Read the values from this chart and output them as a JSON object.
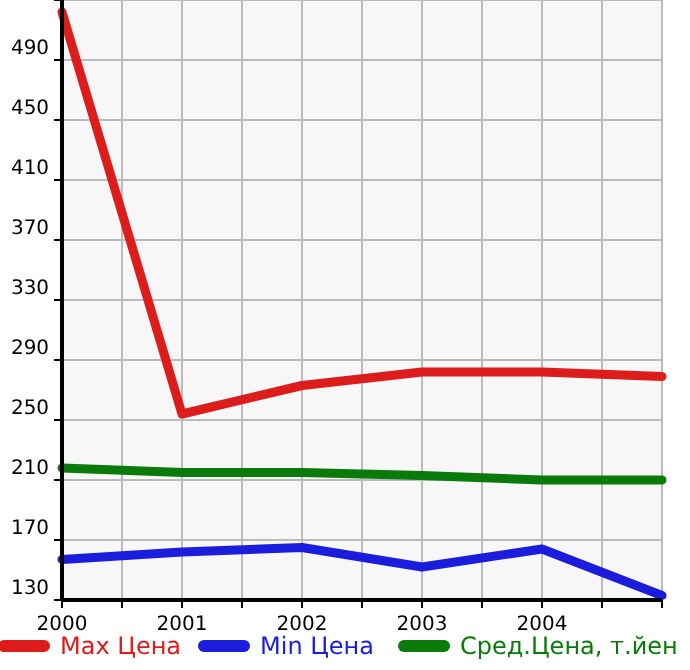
{
  "chart_data": {
    "type": "line",
    "x": [
      2000,
      2001,
      2002,
      2003,
      2004,
      2005
    ],
    "series": [
      {
        "name": "Max Цена",
        "color": "#dd1c1c",
        "values": [
          522,
          254,
          273,
          282,
          282,
          279
        ]
      },
      {
        "name": "Min Цена",
        "color": "#1c1cdd",
        "values": [
          157,
          162,
          165,
          152,
          164,
          133
        ]
      },
      {
        "name": "Сред.Цена, т.йен",
        "color": "#0a7a0a",
        "values": [
          218,
          215,
          215,
          213,
          210,
          210
        ]
      }
    ],
    "xlim": [
      2000,
      2005
    ],
    "xticks": [
      2000,
      {
        "value": 2000.5,
        "label": null
      },
      2001,
      {
        "value": 2001.5,
        "label": null
      },
      2002,
      {
        "value": 2002.5,
        "label": null
      },
      2003,
      {
        "value": 2003.5,
        "label": null
      },
      2004,
      {
        "value": 2004.5,
        "label": null
      },
      {
        "value": 2005,
        "label": null
      }
    ],
    "ylim": [
      130,
      530
    ],
    "yticks": [
      130,
      170,
      210,
      250,
      290,
      330,
      370,
      410,
      450,
      490,
      {
        "value": 530,
        "label": null
      }
    ],
    "grid": true,
    "legend": "bottom",
    "marker": "none",
    "line_style": "solid"
  }
}
